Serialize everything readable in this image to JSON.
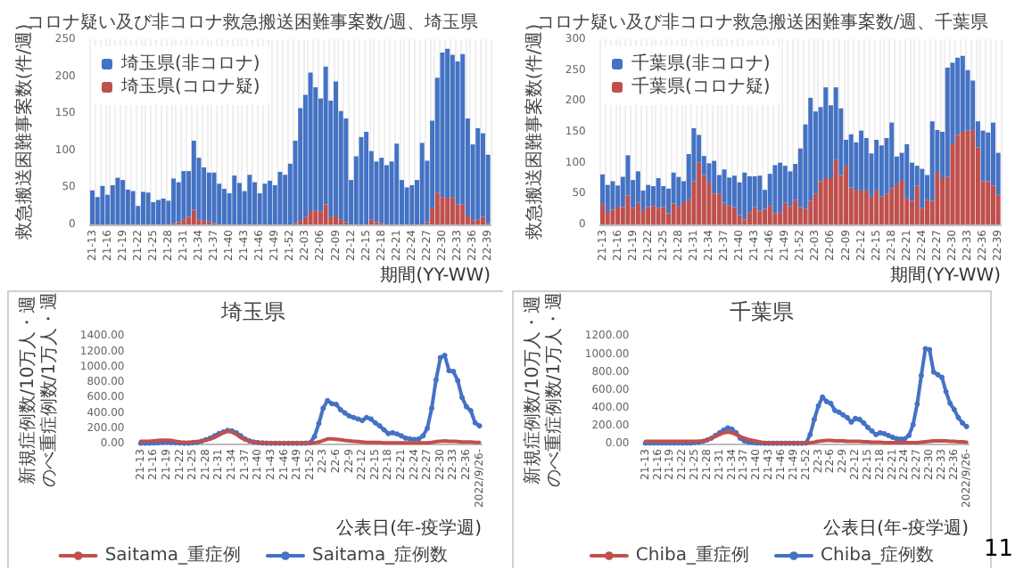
{
  "chart_data": [
    {
      "type": "bar",
      "title": "コロナ疑い及び非コロナ救急搬送困難事案数/週、埼玉県",
      "xlabel": "期間(YY-WW)",
      "ylabel": "救急搬送困難事案数(件/週)",
      "stacked": true,
      "legend": "top left",
      "grid": "x",
      "ylim": [
        0,
        250
      ],
      "yticks": [
        0,
        50,
        100,
        150,
        200,
        250
      ],
      "categories": [
        "21-13",
        null,
        null,
        "21-16",
        null,
        null,
        "21-19",
        null,
        null,
        "21-22",
        null,
        null,
        "21-25",
        null,
        null,
        "21-28",
        null,
        null,
        "21-31",
        null,
        null,
        "21-34",
        null,
        null,
        "21-37",
        null,
        null,
        "21-40",
        null,
        null,
        "21-43",
        null,
        null,
        "21-46",
        null,
        null,
        "21-49",
        null,
        null,
        "21-52",
        null,
        null,
        "22-03",
        null,
        null,
        "22-06",
        null,
        null,
        "22-09",
        null,
        null,
        "22-12",
        null,
        null,
        "22-15",
        null,
        null,
        "22-18",
        null,
        null,
        "22-21",
        null,
        null,
        "22-24",
        null,
        null,
        "22-27",
        null,
        null,
        "22-30",
        null,
        null,
        "22-33",
        null,
        null,
        "22-36",
        null,
        null,
        "22-39"
      ],
      "series": [
        {
          "name": "埼玉県(コロナ疑)",
          "color": "#c0504d",
          "values": [
            0,
            0,
            0,
            0,
            0,
            0,
            0,
            0,
            0,
            0,
            0,
            0,
            0,
            0,
            0,
            0,
            2,
            3,
            7,
            10,
            20,
            7,
            5,
            4,
            2,
            0,
            0,
            0,
            0,
            0,
            0,
            0,
            0,
            0,
            0,
            0,
            0,
            0,
            0,
            0,
            2,
            5,
            10,
            18,
            19,
            17,
            27,
            10,
            12,
            7,
            3,
            0,
            0,
            0,
            0,
            7,
            3,
            2,
            0,
            0,
            0,
            0,
            0,
            0,
            0,
            0,
            3,
            22,
            43,
            37,
            36,
            37,
            27,
            27,
            12,
            5,
            7,
            10,
            2
          ]
        },
        {
          "name": "埼玉県(非コロナ)",
          "color": "#4472c4",
          "values": [
            46,
            37,
            52,
            40,
            53,
            63,
            60,
            47,
            45,
            25,
            44,
            43,
            30,
            33,
            35,
            32,
            60,
            54,
            65,
            62,
            93,
            83,
            72,
            66,
            68,
            55,
            48,
            42,
            66,
            56,
            45,
            67,
            57,
            42,
            55,
            59,
            53,
            71,
            67,
            82,
            111,
            152,
            165,
            187,
            166,
            153,
            186,
            157,
            181,
            146,
            140,
            60,
            92,
            118,
            125,
            92,
            82,
            88,
            80,
            85,
            109,
            60,
            50,
            53,
            60,
            110,
            83,
            118,
            155,
            195,
            201,
            192,
            193,
            203,
            131,
            103,
            123,
            113,
            92
          ]
        }
      ]
    },
    {
      "type": "bar",
      "title": "コロナ疑い及び非コロナ救急搬送困難事案数/週、千葉県",
      "xlabel": "期間(YY-WW)",
      "ylabel": "救急搬送困難事案数(件/週)",
      "stacked": true,
      "legend": "top left",
      "grid": "x",
      "ylim": [
        0,
        300
      ],
      "yticks": [
        0,
        50,
        100,
        150,
        200,
        250,
        300
      ],
      "categories": [
        "21-13",
        null,
        null,
        "21-16",
        null,
        null,
        "21-19",
        null,
        null,
        "21-22",
        null,
        null,
        "21-25",
        null,
        null,
        "21-28",
        null,
        null,
        "21-31",
        null,
        null,
        "21-34",
        null,
        null,
        "21-37",
        null,
        null,
        "21-40",
        null,
        null,
        "21-43",
        null,
        null,
        "21-46",
        null,
        null,
        "21-49",
        null,
        null,
        "21-52",
        null,
        null,
        "22-03",
        null,
        null,
        "22-06",
        null,
        null,
        "22-09",
        null,
        null,
        "22-12",
        null,
        null,
        "22-15",
        null,
        null,
        "22-18",
        null,
        null,
        "22-21",
        null,
        null,
        "22-24",
        null,
        null,
        "22-27",
        null,
        null,
        "22-30",
        null,
        null,
        "22-33",
        null,
        null,
        "22-36",
        null,
        null,
        "22-39"
      ],
      "series": [
        {
          "name": "千葉県(コロナ疑)",
          "color": "#c0504d",
          "values": [
            33,
            20,
            24,
            29,
            28,
            47,
            27,
            35,
            23,
            28,
            30,
            27,
            28,
            18,
            34,
            29,
            36,
            40,
            70,
            100,
            80,
            68,
            50,
            50,
            35,
            30,
            28,
            15,
            8,
            20,
            28,
            22,
            25,
            30,
            18,
            20,
            35,
            30,
            40,
            28,
            25,
            38,
            50,
            70,
            75,
            75,
            105,
            80,
            95,
            60,
            55,
            55,
            55,
            45,
            55,
            45,
            50,
            58,
            65,
            72,
            42,
            38,
            63,
            27,
            40,
            38,
            85,
            75,
            77,
            130,
            145,
            150,
            152,
            153,
            125,
            70,
            70,
            63,
            48
          ]
        },
        {
          "name": "千葉県(非コロナ)",
          "color": "#4472c4",
          "values": [
            48,
            44,
            46,
            34,
            49,
            65,
            45,
            51,
            32,
            36,
            32,
            48,
            34,
            40,
            50,
            48,
            34,
            74,
            86,
            45,
            31,
            31,
            53,
            30,
            54,
            46,
            51,
            53,
            76,
            58,
            50,
            57,
            31,
            52,
            78,
            80,
            60,
            56,
            58,
            95,
            137,
            167,
            133,
            120,
            147,
            118,
            117,
            108,
            42,
            86,
            78,
            97,
            85,
            70,
            82,
            83,
            90,
            107,
            45,
            44,
            88,
            62,
            32,
            63,
            40,
            129,
            68,
            75,
            177,
            132,
            125,
            123,
            98,
            80,
            42,
            82,
            79,
            102,
            68
          ]
        }
      ]
    },
    {
      "type": "line",
      "title": "埼玉県",
      "xlabel": "公表日(年-疫学週)",
      "ylabel": "新規症例数/10万人・週のべ重症例数/1万人・週",
      "legend": "bottom",
      "marker": "circle",
      "ylim": [
        0,
        1400
      ],
      "yticks": [
        {
          "value": 0,
          "label": "0.00"
        },
        {
          "value": 200,
          "label": "200.00"
        },
        {
          "value": 400,
          "label": "400.00"
        },
        {
          "value": 600,
          "label": "600.00"
        },
        {
          "value": 800,
          "label": "800.00"
        },
        {
          "value": 1000,
          "label": "1000.00"
        },
        {
          "value": 1200,
          "label": "1200.00"
        },
        {
          "value": 1400,
          "label": "1400.00"
        }
      ],
      "categories": [
        "21-13",
        null,
        null,
        "21-16",
        null,
        null,
        "21-19",
        null,
        null,
        "21-22",
        null,
        null,
        "21-25",
        null,
        null,
        "21-28",
        null,
        null,
        "21-31",
        null,
        null,
        "21-34",
        null,
        null,
        "21-37",
        null,
        null,
        "21-40",
        null,
        null,
        "21-43",
        null,
        null,
        "21-46",
        null,
        null,
        "21-49",
        null,
        null,
        "21-52",
        null,
        null,
        "22-3",
        null,
        null,
        "22-6",
        null,
        null,
        "22-9",
        null,
        null,
        "22-12",
        null,
        null,
        "22-15",
        null,
        null,
        "22-18",
        null,
        null,
        "22-21",
        null,
        null,
        "22-24",
        null,
        null,
        "22-27",
        null,
        null,
        "22-30",
        null,
        null,
        "22-33",
        null,
        null,
        "22-36",
        null,
        null,
        "2022/9/26-"
      ],
      "series": [
        {
          "name": "Saitama_症例数",
          "color": "#4472c4",
          "values": [
            5,
            5,
            5,
            8,
            10,
            15,
            15,
            12,
            10,
            8,
            5,
            5,
            10,
            15,
            30,
            50,
            70,
            100,
            130,
            150,
            170,
            165,
            140,
            100,
            60,
            35,
            20,
            12,
            8,
            5,
            3,
            3,
            3,
            3,
            3,
            3,
            3,
            3,
            5,
            10,
            90,
            260,
            460,
            560,
            520,
            510,
            440,
            400,
            360,
            340,
            320,
            300,
            340,
            320,
            270,
            230,
            180,
            130,
            140,
            125,
            100,
            70,
            60,
            55,
            60,
            100,
            200,
            460,
            830,
            1120,
            1150,
            950,
            940,
            820,
            600,
            480,
            430,
            270,
            230
          ]
        },
        {
          "name": "Saitama_重症例",
          "color": "#c0504d",
          "marker": "none",
          "values": [
            30,
            30,
            30,
            35,
            40,
            45,
            45,
            40,
            30,
            20,
            15,
            15,
            20,
            25,
            35,
            45,
            60,
            80,
            110,
            140,
            160,
            150,
            120,
            80,
            50,
            30,
            20,
            15,
            10,
            8,
            5,
            5,
            5,
            5,
            5,
            5,
            5,
            5,
            5,
            5,
            10,
            20,
            40,
            60,
            60,
            55,
            50,
            40,
            35,
            30,
            25,
            20,
            15,
            15,
            15,
            15,
            10,
            10,
            10,
            10,
            10,
            10,
            10,
            10,
            10,
            10,
            10,
            15,
            25,
            30,
            35,
            30,
            30,
            25,
            20,
            20,
            20,
            15,
            15
          ]
        }
      ]
    },
    {
      "type": "line",
      "title": "千葉県",
      "xlabel": "公表日(年-疫学週)",
      "ylabel": "新規症例数/10万人・週のべ重症例数/1万人・週",
      "legend": "bottom",
      "marker": "circle",
      "annotations": [
        "11"
      ],
      "ylim": [
        0,
        1200
      ],
      "yticks": [
        {
          "value": 0,
          "label": "0.00"
        },
        {
          "value": 200,
          "label": "200.00"
        },
        {
          "value": 400,
          "label": "400.00"
        },
        {
          "value": 600,
          "label": "600.00"
        },
        {
          "value": 800,
          "label": "800.00"
        },
        {
          "value": 1000,
          "label": "1000.00"
        },
        {
          "value": 1200,
          "label": "1200.00"
        }
      ],
      "categories": [
        "21-13",
        null,
        null,
        "21-16",
        null,
        null,
        "21-19",
        null,
        null,
        "21-22",
        null,
        null,
        "21-25",
        null,
        null,
        "21-28",
        null,
        null,
        "21-31",
        null,
        null,
        "21-34",
        null,
        null,
        "21-37",
        null,
        null,
        "21-40",
        null,
        null,
        "21-43",
        null,
        null,
        "21-46",
        null,
        null,
        "21-49",
        null,
        null,
        "21-52",
        null,
        null,
        "22-3",
        null,
        null,
        "22-6",
        null,
        null,
        "22-9",
        null,
        null,
        "22-12",
        null,
        null,
        "22-15",
        null,
        null,
        "22-18",
        null,
        null,
        "22-21",
        null,
        null,
        "22-24",
        null,
        null,
        "22-27",
        null,
        null,
        "22-30",
        null,
        null,
        "22-33",
        null,
        null,
        "22-36",
        null,
        null,
        "2022/9/26-"
      ],
      "series": [
        {
          "name": "Chiba_症例数",
          "color": "#4472c4",
          "values": [
            5,
            5,
            5,
            5,
            5,
            5,
            5,
            5,
            5,
            5,
            5,
            5,
            10,
            15,
            25,
            40,
            60,
            90,
            120,
            150,
            175,
            160,
            120,
            60,
            30,
            15,
            10,
            5,
            5,
            3,
            3,
            3,
            3,
            3,
            3,
            3,
            3,
            3,
            3,
            5,
            100,
            270,
            420,
            520,
            470,
            450,
            370,
            350,
            320,
            290,
            240,
            280,
            270,
            230,
            180,
            140,
            100,
            120,
            110,
            90,
            70,
            55,
            50,
            55,
            90,
            210,
            440,
            760,
            1060,
            1050,
            800,
            770,
            740,
            580,
            450,
            380,
            290,
            230,
            190
          ]
        },
        {
          "name": "Chiba_重症例",
          "color": "#c0504d",
          "marker": "none",
          "values": [
            25,
            25,
            25,
            25,
            25,
            25,
            25,
            25,
            25,
            25,
            25,
            25,
            25,
            25,
            30,
            40,
            60,
            80,
            100,
            120,
            130,
            120,
            100,
            80,
            60,
            45,
            35,
            25,
            15,
            10,
            5,
            5,
            5,
            5,
            5,
            5,
            5,
            5,
            5,
            5,
            10,
            15,
            25,
            30,
            35,
            35,
            30,
            30,
            30,
            25,
            25,
            25,
            25,
            20,
            20,
            15,
            15,
            15,
            10,
            10,
            10,
            10,
            10,
            10,
            10,
            10,
            10,
            15,
            20,
            25,
            30,
            30,
            30,
            30,
            25,
            25,
            20,
            20,
            15
          ]
        }
      ]
    }
  ]
}
